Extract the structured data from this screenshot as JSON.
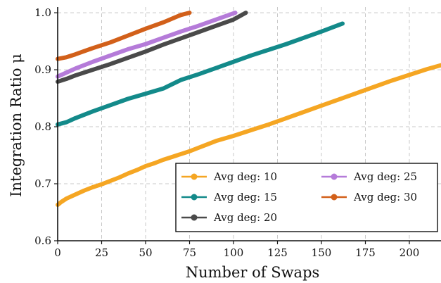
{
  "chart_data": {
    "type": "line",
    "xlabel": "Number of Swaps",
    "ylabel": "Integration Ratio μ",
    "xlim": [
      0,
      218
    ],
    "ylim": [
      0.6,
      1.01
    ],
    "x_ticks": [
      0,
      25,
      50,
      75,
      100,
      125,
      150,
      175,
      200
    ],
    "y_ticks": [
      0.6,
      0.7,
      0.8,
      0.9,
      1.0
    ],
    "x_tick_labels": [
      "0",
      "25",
      "50",
      "75",
      "100",
      "125",
      "150",
      "175",
      "200"
    ],
    "y_tick_labels": [
      "0.6",
      "0.7",
      "0.8",
      "0.9",
      "1.0"
    ],
    "grid": true,
    "legend_position": "bottom-right",
    "legend_columns": 2,
    "series": [
      {
        "name": "Avg deg: 10",
        "color": "#f5a623",
        "points": [
          [
            0,
            0.663
          ],
          [
            2,
            0.668
          ],
          [
            5,
            0.674
          ],
          [
            10,
            0.681
          ],
          [
            15,
            0.688
          ],
          [
            20,
            0.694
          ],
          [
            25,
            0.699
          ],
          [
            30,
            0.705
          ],
          [
            35,
            0.711
          ],
          [
            40,
            0.718
          ],
          [
            45,
            0.724
          ],
          [
            50,
            0.731
          ],
          [
            55,
            0.736
          ],
          [
            60,
            0.742
          ],
          [
            65,
            0.747
          ],
          [
            70,
            0.752
          ],
          [
            75,
            0.757
          ],
          [
            80,
            0.763
          ],
          [
            85,
            0.769
          ],
          [
            90,
            0.775
          ],
          [
            100,
            0.784
          ],
          [
            110,
            0.794
          ],
          [
            120,
            0.804
          ],
          [
            130,
            0.815
          ],
          [
            140,
            0.826
          ],
          [
            150,
            0.837
          ],
          [
            160,
            0.848
          ],
          [
            170,
            0.859
          ],
          [
            180,
            0.87
          ],
          [
            190,
            0.881
          ],
          [
            200,
            0.891
          ],
          [
            210,
            0.901
          ],
          [
            218,
            0.908
          ]
        ]
      },
      {
        "name": "Avg deg: 15",
        "color": "#138a8a",
        "points": [
          [
            0,
            0.804
          ],
          [
            5,
            0.808
          ],
          [
            10,
            0.815
          ],
          [
            15,
            0.821
          ],
          [
            20,
            0.827
          ],
          [
            30,
            0.838
          ],
          [
            40,
            0.849
          ],
          [
            50,
            0.858
          ],
          [
            60,
            0.867
          ],
          [
            70,
            0.882
          ],
          [
            80,
            0.892
          ],
          [
            90,
            0.903
          ],
          [
            100,
            0.914
          ],
          [
            110,
            0.925
          ],
          [
            120,
            0.935
          ],
          [
            130,
            0.945
          ],
          [
            140,
            0.956
          ],
          [
            150,
            0.967
          ],
          [
            162,
            0.981
          ]
        ]
      },
      {
        "name": "Avg deg: 20",
        "color": "#4a4a4a",
        "points": [
          [
            0,
            0.879
          ],
          [
            5,
            0.884
          ],
          [
            10,
            0.89
          ],
          [
            20,
            0.9
          ],
          [
            30,
            0.91
          ],
          [
            40,
            0.921
          ],
          [
            50,
            0.932
          ],
          [
            60,
            0.944
          ],
          [
            70,
            0.955
          ],
          [
            80,
            0.966
          ],
          [
            90,
            0.977
          ],
          [
            100,
            0.988
          ],
          [
            107,
            1.0
          ]
        ]
      },
      {
        "name": "Avg deg: 25",
        "color": "#b57bd9",
        "points": [
          [
            0,
            0.888
          ],
          [
            5,
            0.895
          ],
          [
            10,
            0.902
          ],
          [
            20,
            0.914
          ],
          [
            30,
            0.925
          ],
          [
            40,
            0.936
          ],
          [
            50,
            0.945
          ],
          [
            60,
            0.956
          ],
          [
            70,
            0.967
          ],
          [
            80,
            0.977
          ],
          [
            90,
            0.988
          ],
          [
            101,
            1.0
          ]
        ]
      },
      {
        "name": "Avg deg: 30",
        "color": "#d2601a",
        "points": [
          [
            0,
            0.919
          ],
          [
            5,
            0.922
          ],
          [
            10,
            0.927
          ],
          [
            20,
            0.938
          ],
          [
            30,
            0.948
          ],
          [
            40,
            0.96
          ],
          [
            50,
            0.972
          ],
          [
            60,
            0.983
          ],
          [
            70,
            0.996
          ],
          [
            75,
            1.0
          ]
        ]
      }
    ]
  }
}
